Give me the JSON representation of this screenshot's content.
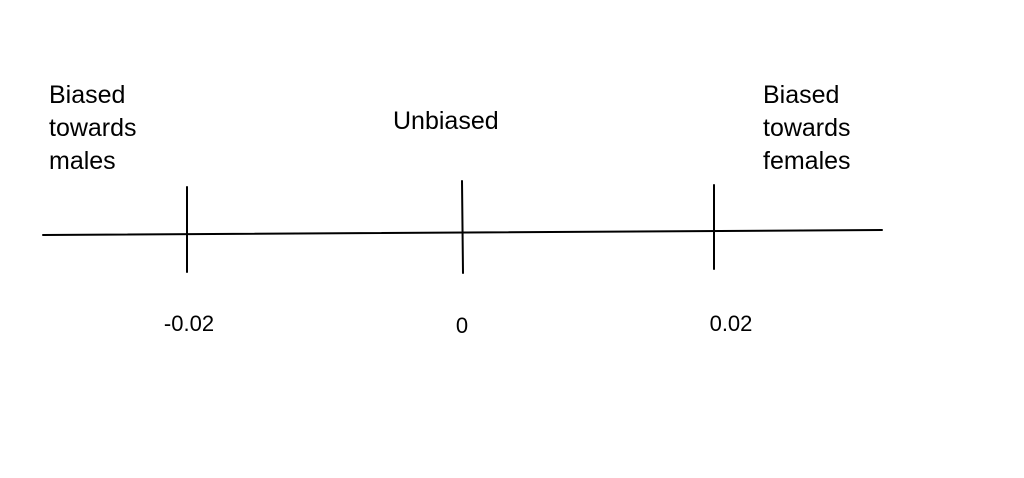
{
  "labels": {
    "left": "Biased\ntowards\nmales",
    "center": "Unbiased",
    "right": "Biased\ntowards\nfemales"
  },
  "ticks": [
    {
      "value": -0.02,
      "label": "-0.02"
    },
    {
      "value": 0,
      "label": "0"
    },
    {
      "value": 0.02,
      "label": "0.02"
    }
  ],
  "colors": {
    "line": "#000000",
    "background": "#ffffff"
  }
}
